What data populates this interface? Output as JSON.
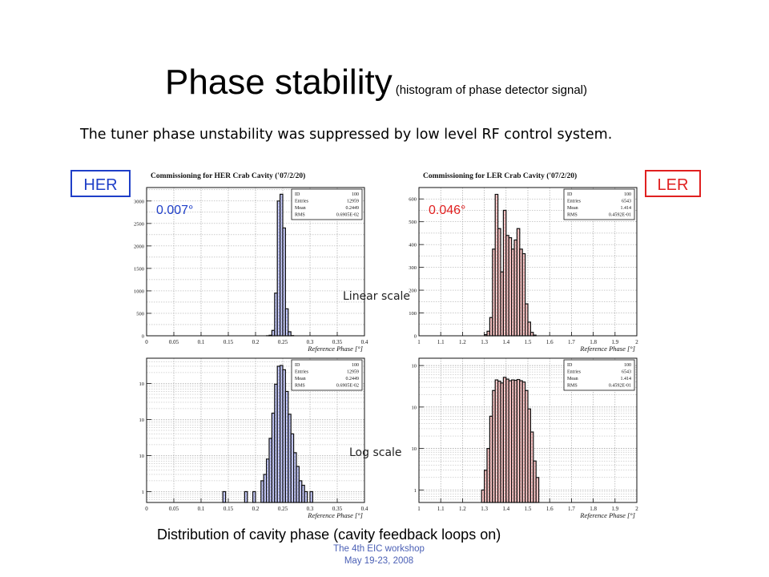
{
  "slide": {
    "title": "Phase stability",
    "title_note": "(histogram of phase detector signal)",
    "subtitle": "The tuner phase unstability was suppressed by low level RF control system.",
    "her_tag": "HER",
    "ler_tag": "LER",
    "linear_label": "Linear scale",
    "log_label": "Log scale",
    "caption": "Distribution of cavity phase (cavity feedback loops on)",
    "footer_line1": "The 4th EIC workshop",
    "footer_line2": "May 19-23, 2008",
    "colors": {
      "her_accent": "#1f3fc8",
      "ler_accent": "#e02020",
      "her_fill": "#b4b9f0",
      "ler_fill": "#f2b6b6",
      "footer": "#4a5fb5"
    }
  },
  "chart_data": [
    {
      "id": "her-linear",
      "type": "bar",
      "title": "Commissioning for HER Crab Cavity ('07/2/20)",
      "xlabel": "Reference Phase [°]",
      "yscale": "linear",
      "xlim": [
        0,
        0.4
      ],
      "ylim": [
        0,
        3300
      ],
      "xticks": [
        "0",
        "0.05",
        "0.1",
        "0.15",
        "0.2",
        "0.25",
        "0.3",
        "0.35",
        "0.4"
      ],
      "yticks": [
        "0",
        "500",
        "1000",
        "1500",
        "2000",
        "2500",
        "3000"
      ],
      "rms_annotation": "0.007°",
      "stats": [
        [
          "ID",
          "100"
        ],
        [
          "Entries",
          "12959"
        ],
        [
          "Mean",
          "0.2449"
        ],
        [
          "RMS",
          "0.6905E-02"
        ]
      ],
      "bin_width": 0.005,
      "bins_x": [
        0.22,
        0.225,
        0.23,
        0.235,
        0.24,
        0.245,
        0.25,
        0.255,
        0.26,
        0.265
      ],
      "values": [
        2,
        12,
        120,
        950,
        3000,
        3150,
        2400,
        600,
        90,
        5
      ]
    },
    {
      "id": "ler-linear",
      "type": "bar",
      "title": "Commissioning for LER Crab Cavity ('07/2/20)",
      "xlabel": "Reference Phase [°]",
      "yscale": "linear",
      "xlim": [
        1,
        2
      ],
      "ylim": [
        0,
        650
      ],
      "xticks": [
        "1",
        "1.1",
        "1.2",
        "1.3",
        "1.4",
        "1.5",
        "1.6",
        "1.7",
        "1.8",
        "1.9",
        "2"
      ],
      "yticks": [
        "0",
        "100",
        "200",
        "300",
        "400",
        "500",
        "600"
      ],
      "rms_annotation": "0.046°",
      "stats": [
        [
          "ID",
          "100"
        ],
        [
          "Entries",
          "6543"
        ],
        [
          "Mean",
          "1.414"
        ],
        [
          "RMS",
          "0.4592E-01"
        ]
      ],
      "bin_width": 0.0125,
      "bins_x": [
        1.3,
        1.3125,
        1.325,
        1.3375,
        1.35,
        1.3625,
        1.375,
        1.3875,
        1.4,
        1.4125,
        1.425,
        1.4375,
        1.45,
        1.4625,
        1.475,
        1.4875,
        1.5,
        1.5125,
        1.525
      ],
      "values": [
        5,
        20,
        80,
        380,
        620,
        470,
        280,
        550,
        440,
        430,
        380,
        420,
        470,
        380,
        360,
        140,
        60,
        15,
        3
      ]
    },
    {
      "id": "her-log",
      "type": "bar",
      "xlabel": "Reference Phase [°]",
      "yscale": "log",
      "xlim": [
        0,
        0.4
      ],
      "ylim": [
        0.5,
        5000
      ],
      "xticks": [
        "0",
        "0.05",
        "0.1",
        "0.15",
        "0.2",
        "0.25",
        "0.3",
        "0.35",
        "0.4"
      ],
      "yticks": [
        "1",
        "10",
        "10",
        "10",
        "10"
      ],
      "stats": [
        [
          "ID",
          "100"
        ],
        [
          "Entries",
          "12959"
        ],
        [
          "Mean",
          "0.2449"
        ],
        [
          "RMS",
          "0.6905E-02"
        ]
      ],
      "bin_width": 0.005,
      "bins_x": [
        0.14,
        0.18,
        0.195,
        0.21,
        0.215,
        0.22,
        0.225,
        0.23,
        0.235,
        0.24,
        0.245,
        0.25,
        0.255,
        0.26,
        0.265,
        0.27,
        0.275,
        0.28,
        0.285,
        0.29,
        0.3
      ],
      "values": [
        1,
        1,
        1,
        2,
        3,
        8,
        30,
        150,
        950,
        3000,
        3150,
        2400,
        600,
        140,
        40,
        12,
        5,
        2,
        1.5,
        1,
        1
      ]
    },
    {
      "id": "ler-log",
      "type": "bar",
      "xlabel": "Reference Phase [°]",
      "yscale": "log",
      "xlim": [
        1,
        2
      ],
      "ylim": [
        0.5,
        1500
      ],
      "xticks": [
        "1",
        "1.1",
        "1.2",
        "1.3",
        "1.4",
        "1.5",
        "1.6",
        "1.7",
        "1.8",
        "1.9",
        "2"
      ],
      "yticks": [
        "1",
        "10",
        "10",
        "10"
      ],
      "stats": [
        [
          "ID",
          "100"
        ],
        [
          "Entries",
          "6543"
        ],
        [
          "Mean",
          "1.414"
        ],
        [
          "RMS",
          "0.4592E-01"
        ]
      ],
      "bin_width": 0.0125,
      "bins_x": [
        1.2875,
        1.3,
        1.3125,
        1.325,
        1.3375,
        1.35,
        1.3625,
        1.375,
        1.3875,
        1.4,
        1.4125,
        1.425,
        1.4375,
        1.45,
        1.4625,
        1.475,
        1.4875,
        1.5,
        1.5125,
        1.525,
        1.5375
      ],
      "values": [
        1,
        3,
        10,
        60,
        250,
        450,
        420,
        380,
        520,
        470,
        430,
        450,
        440,
        460,
        430,
        400,
        250,
        90,
        25,
        5,
        2
      ]
    }
  ]
}
